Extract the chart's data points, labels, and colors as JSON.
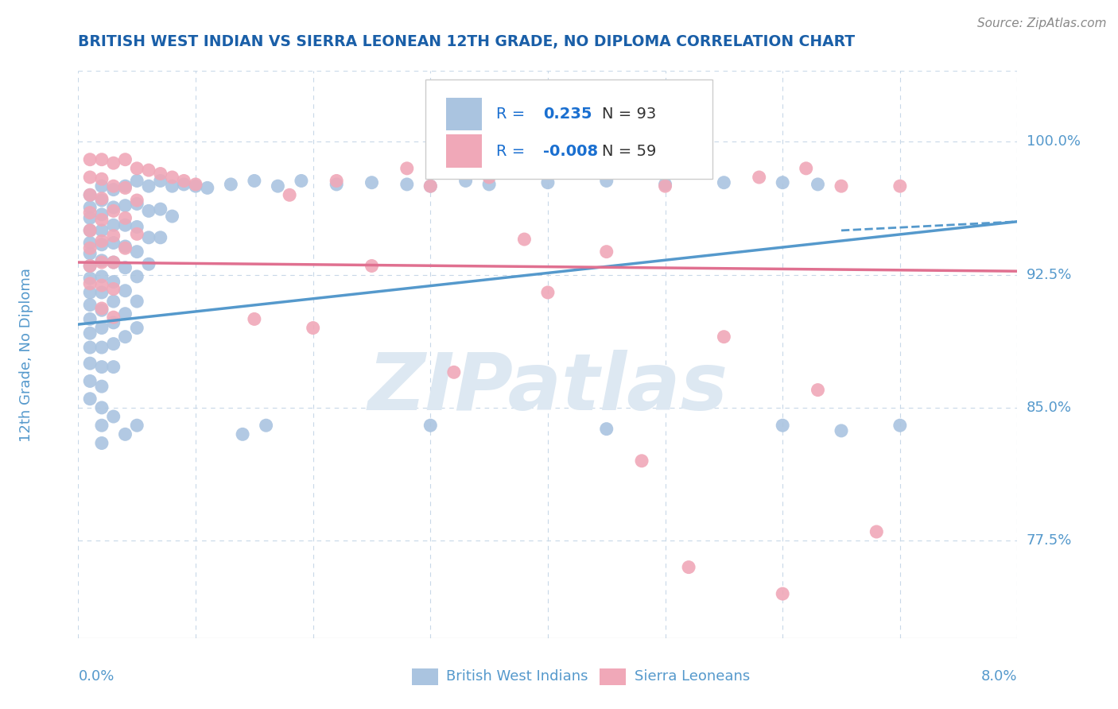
{
  "title": "BRITISH WEST INDIAN VS SIERRA LEONEAN 12TH GRADE, NO DIPLOMA CORRELATION CHART",
  "source": "Source: ZipAtlas.com",
  "ylabel": "12th Grade, No Diploma",
  "x_min": 0.0,
  "x_max": 0.08,
  "y_min": 0.72,
  "y_max": 1.04,
  "r_blue": 0.235,
  "n_blue": 93,
  "r_pink": -0.008,
  "n_pink": 59,
  "blue_color": "#aac4e0",
  "pink_color": "#f0a8b8",
  "blue_line_color": "#5599cc",
  "pink_line_color": "#e07090",
  "axis_color": "#5599cc",
  "grid_color": "#c8d8e8",
  "title_color": "#1a5fa8",
  "legend_r_color": "#1a6fd0",
  "legend_n_color": "#333333",
  "watermark_color": "#dde8f2",
  "blue_trend_x": [
    0.0,
    0.08
  ],
  "blue_trend_y": [
    0.897,
    0.955
  ],
  "pink_trend_x": [
    0.0,
    0.08
  ],
  "pink_trend_y": [
    0.932,
    0.927
  ],
  "blue_scatter": [
    [
      0.001,
      0.97
    ],
    [
      0.001,
      0.963
    ],
    [
      0.001,
      0.957
    ],
    [
      0.001,
      0.95
    ],
    [
      0.001,
      0.943
    ],
    [
      0.001,
      0.937
    ],
    [
      0.001,
      0.93
    ],
    [
      0.001,
      0.923
    ],
    [
      0.001,
      0.915
    ],
    [
      0.001,
      0.908
    ],
    [
      0.001,
      0.9
    ],
    [
      0.001,
      0.892
    ],
    [
      0.001,
      0.884
    ],
    [
      0.001,
      0.875
    ],
    [
      0.001,
      0.865
    ],
    [
      0.001,
      0.855
    ],
    [
      0.002,
      0.975
    ],
    [
      0.002,
      0.967
    ],
    [
      0.002,
      0.959
    ],
    [
      0.002,
      0.95
    ],
    [
      0.002,
      0.942
    ],
    [
      0.002,
      0.933
    ],
    [
      0.002,
      0.924
    ],
    [
      0.002,
      0.915
    ],
    [
      0.002,
      0.905
    ],
    [
      0.002,
      0.895
    ],
    [
      0.002,
      0.884
    ],
    [
      0.002,
      0.873
    ],
    [
      0.002,
      0.862
    ],
    [
      0.002,
      0.85
    ],
    [
      0.003,
      0.973
    ],
    [
      0.003,
      0.963
    ],
    [
      0.003,
      0.953
    ],
    [
      0.003,
      0.943
    ],
    [
      0.003,
      0.932
    ],
    [
      0.003,
      0.921
    ],
    [
      0.003,
      0.91
    ],
    [
      0.003,
      0.898
    ],
    [
      0.003,
      0.886
    ],
    [
      0.003,
      0.873
    ],
    [
      0.004,
      0.975
    ],
    [
      0.004,
      0.964
    ],
    [
      0.004,
      0.953
    ],
    [
      0.004,
      0.941
    ],
    [
      0.004,
      0.929
    ],
    [
      0.004,
      0.916
    ],
    [
      0.004,
      0.903
    ],
    [
      0.004,
      0.89
    ],
    [
      0.005,
      0.978
    ],
    [
      0.005,
      0.965
    ],
    [
      0.005,
      0.952
    ],
    [
      0.005,
      0.938
    ],
    [
      0.005,
      0.924
    ],
    [
      0.005,
      0.91
    ],
    [
      0.005,
      0.895
    ],
    [
      0.006,
      0.975
    ],
    [
      0.006,
      0.961
    ],
    [
      0.006,
      0.946
    ],
    [
      0.006,
      0.931
    ],
    [
      0.007,
      0.978
    ],
    [
      0.007,
      0.962
    ],
    [
      0.007,
      0.946
    ],
    [
      0.008,
      0.975
    ],
    [
      0.008,
      0.958
    ],
    [
      0.009,
      0.976
    ],
    [
      0.01,
      0.975
    ],
    [
      0.011,
      0.974
    ],
    [
      0.013,
      0.976
    ],
    [
      0.015,
      0.978
    ],
    [
      0.017,
      0.975
    ],
    [
      0.019,
      0.978
    ],
    [
      0.022,
      0.976
    ],
    [
      0.025,
      0.977
    ],
    [
      0.028,
      0.976
    ],
    [
      0.03,
      0.975
    ],
    [
      0.033,
      0.978
    ],
    [
      0.035,
      0.976
    ],
    [
      0.04,
      0.977
    ],
    [
      0.045,
      0.978
    ],
    [
      0.05,
      0.976
    ],
    [
      0.055,
      0.977
    ],
    [
      0.06,
      0.977
    ],
    [
      0.063,
      0.976
    ],
    [
      0.002,
      0.84
    ],
    [
      0.002,
      0.83
    ],
    [
      0.003,
      0.845
    ],
    [
      0.004,
      0.835
    ],
    [
      0.005,
      0.84
    ],
    [
      0.014,
      0.835
    ],
    [
      0.016,
      0.84
    ],
    [
      0.03,
      0.84
    ],
    [
      0.045,
      0.838
    ],
    [
      0.06,
      0.84
    ],
    [
      0.065,
      0.837
    ],
    [
      0.07,
      0.84
    ]
  ],
  "pink_scatter": [
    [
      0.001,
      0.99
    ],
    [
      0.001,
      0.98
    ],
    [
      0.001,
      0.97
    ],
    [
      0.001,
      0.96
    ],
    [
      0.001,
      0.95
    ],
    [
      0.001,
      0.94
    ],
    [
      0.001,
      0.93
    ],
    [
      0.001,
      0.92
    ],
    [
      0.002,
      0.99
    ],
    [
      0.002,
      0.979
    ],
    [
      0.002,
      0.968
    ],
    [
      0.002,
      0.956
    ],
    [
      0.002,
      0.944
    ],
    [
      0.002,
      0.932
    ],
    [
      0.002,
      0.919
    ],
    [
      0.002,
      0.906
    ],
    [
      0.003,
      0.988
    ],
    [
      0.003,
      0.975
    ],
    [
      0.003,
      0.961
    ],
    [
      0.003,
      0.947
    ],
    [
      0.003,
      0.932
    ],
    [
      0.003,
      0.917
    ],
    [
      0.003,
      0.901
    ],
    [
      0.004,
      0.99
    ],
    [
      0.004,
      0.974
    ],
    [
      0.004,
      0.957
    ],
    [
      0.004,
      0.94
    ],
    [
      0.005,
      0.985
    ],
    [
      0.005,
      0.967
    ],
    [
      0.005,
      0.948
    ],
    [
      0.006,
      0.984
    ],
    [
      0.007,
      0.982
    ],
    [
      0.008,
      0.98
    ],
    [
      0.009,
      0.978
    ],
    [
      0.01,
      0.976
    ],
    [
      0.015,
      0.9
    ],
    [
      0.018,
      0.97
    ],
    [
      0.02,
      0.895
    ],
    [
      0.022,
      0.978
    ],
    [
      0.025,
      0.93
    ],
    [
      0.028,
      0.985
    ],
    [
      0.03,
      0.975
    ],
    [
      0.032,
      0.87
    ],
    [
      0.035,
      0.98
    ],
    [
      0.038,
      0.945
    ],
    [
      0.04,
      0.915
    ],
    [
      0.042,
      0.985
    ],
    [
      0.045,
      0.938
    ],
    [
      0.048,
      0.82
    ],
    [
      0.05,
      0.975
    ],
    [
      0.052,
      0.76
    ],
    [
      0.055,
      0.89
    ],
    [
      0.058,
      0.98
    ],
    [
      0.06,
      0.745
    ],
    [
      0.062,
      0.985
    ],
    [
      0.063,
      0.86
    ],
    [
      0.065,
      0.975
    ],
    [
      0.068,
      0.78
    ],
    [
      0.07,
      0.975
    ]
  ]
}
